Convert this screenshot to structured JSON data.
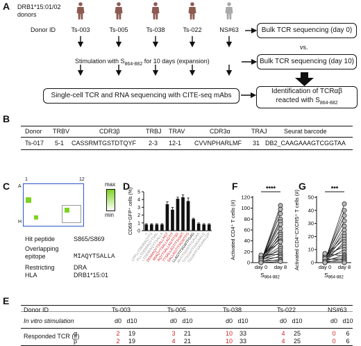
{
  "panel_labels": {
    "a": "A",
    "b": "B",
    "c": "C",
    "d": "D",
    "e": "E",
    "f": "F",
    "g": "G"
  },
  "panel_a": {
    "hla_label": "DRB1*15:01/02",
    "donors_label": "donors",
    "donor_id_label": "Donor ID",
    "donors": [
      "Ts-003",
      "Ts-005",
      "Ts-038",
      "Ts-022",
      "NS#63"
    ],
    "bulk_day0": "Bulk TCR sequencing (day 0)",
    "vs": "vs.",
    "stimulation_pre": "Stimulation with S",
    "stimulation_sub": "864-882",
    "stimulation_post": " for 10 days (expansion)",
    "bulk_day10": "Bulk TCR sequencing (day 10)",
    "single_cell": "Single-cell TCR and RNA sequencing with CITE-seq mAbs",
    "identification_line1": "Identification of TCRαβ",
    "identification_line2_pre": "reacted with S",
    "identification_line2_sub": "864-882",
    "colors": {
      "donor_icon": "#8d5a52",
      "control_icon": "#a9a9a9"
    }
  },
  "panel_b": {
    "headers": [
      "Donor",
      "TRBV",
      "CDR3β",
      "TRBJ",
      "TRAV",
      "CDR3α",
      "TRAJ",
      "Seurat barcode"
    ],
    "row": [
      "Ts-017",
      "5-1",
      "CASSRMTGSTDTQYF",
      "2-3",
      "12-1",
      "CVVNPHARLMF",
      "31",
      "DB2_CAAGAAAGTCGGTAA"
    ]
  },
  "panel_c": {
    "col_start": "1",
    "col_end": "12",
    "row_start": "A",
    "row_end": "H",
    "legend_max": "max",
    "legend_min": "min",
    "hit_peptide_label": "Hit peptide",
    "hit_peptide_value": "S865/S869",
    "overlapping_label_1": "Overlapping",
    "overlapping_label_2": "epitope",
    "overlapping_value": "MIAQYTSALLA",
    "restricting_label_1": "Restricting",
    "restricting_label_2": "HLA",
    "restricting_value_1": "DRA",
    "restricting_value_2": "DRB1*15:01",
    "colors": {
      "plate_border": "#2a55c9",
      "hit_well": "#7ed321"
    }
  },
  "panel_d": {
    "ylabel": "CD69⁺GFP⁺ cells (%)",
    "chart_data": {
      "type": "bar",
      "ylabel": "CD69⁺GFP⁺ cells (%)",
      "ylim": [
        0,
        5
      ],
      "yticks": [
        0,
        1,
        2,
        3,
        4,
        5
      ],
      "categories": [
        "–",
        "LPPLLTDEMIAQYTS",
        "PLLTDEMIAQYTSAL",
        "LTDEMIAQYTSALLA",
        "DEMIAQYTSALLAGT",
        "MIAQYTSALLAGTIT",
        "AQYTSALLAGTITSG",
        "YTSALLAGTITSGWT",
        "SALLAGTITSGWTFG",
        "LLAGTITSGWTFGAG",
        "AGTITSGWTFGAGAA",
        "TITSGWTFGAGAALQ",
        "TSGWTFGAGAALQIP"
      ],
      "values": [
        0.8,
        0.8,
        0.8,
        0.8,
        3.4,
        2.7,
        4.1,
        4.3,
        3.8,
        1.5,
        0.9,
        0.8,
        0.8
      ],
      "errors": [
        0.1,
        0.1,
        0.1,
        0.1,
        0.3,
        0.3,
        0.2,
        0.3,
        0.4,
        0.1,
        0.1,
        0.1,
        0.1
      ],
      "label_colors": [
        "#111111",
        "#9a9a9a",
        "#9a9a9a",
        "#9a9a9a",
        "#d2232a",
        "#d2232a",
        "#d2232a",
        "#d2232a",
        "#d2232a",
        "#111111",
        "#9a9a9a",
        "#9a9a9a",
        "#9a9a9a"
      ]
    }
  },
  "panel_f": {
    "ylabel": "Activated CD4⁺ T cells (#)",
    "significance": "****",
    "xlabel_pre": "S",
    "xlabel_sub": "864-882",
    "chart_data": {
      "type": "scatter",
      "categories": [
        "day 0",
        "day 8"
      ],
      "ylabel": "Activated CD4⁺ T cells (#)",
      "ylim": [
        0,
        120
      ],
      "yticks": [
        0,
        20,
        40,
        60,
        80,
        100,
        120
      ],
      "pairs": [
        [
          2,
          105
        ],
        [
          1,
          98
        ],
        [
          3,
          90
        ],
        [
          2,
          80
        ],
        [
          5,
          75
        ],
        [
          4,
          70
        ],
        [
          6,
          62
        ],
        [
          3,
          55
        ],
        [
          8,
          52
        ],
        [
          2,
          48
        ],
        [
          10,
          44
        ],
        [
          4,
          40
        ],
        [
          12,
          38
        ],
        [
          6,
          30
        ],
        [
          3,
          26
        ],
        [
          9,
          22
        ],
        [
          5,
          18
        ],
        [
          14,
          15
        ],
        [
          2,
          12
        ],
        [
          7,
          10
        ],
        [
          1,
          6
        ],
        [
          4,
          4
        ],
        [
          0,
          2
        ]
      ]
    }
  },
  "panel_g": {
    "ylabel": "Activated CD4⁺CXCR5⁺ T cells (#)",
    "significance": "***",
    "xlabel_pre": "S",
    "xlabel_sub": "864-882",
    "chart_data": {
      "type": "scatter",
      "categories": [
        "day 0",
        "day 8"
      ],
      "ylabel": "Activated CD4⁺CXCR5⁺ T cells (#)",
      "ylim": [
        0,
        50
      ],
      "yticks": [
        0,
        10,
        20,
        30,
        40,
        50
      ],
      "pairs": [
        [
          1,
          45
        ],
        [
          2,
          40
        ],
        [
          1,
          36
        ],
        [
          3,
          32
        ],
        [
          2,
          28
        ],
        [
          1,
          25
        ],
        [
          4,
          22
        ],
        [
          2,
          20
        ],
        [
          5,
          18
        ],
        [
          1,
          16
        ],
        [
          3,
          14
        ],
        [
          6,
          12
        ],
        [
          2,
          10
        ],
        [
          4,
          8
        ],
        [
          1,
          6
        ],
        [
          7,
          5
        ],
        [
          2,
          4
        ],
        [
          0,
          3
        ],
        [
          3,
          2
        ],
        [
          1,
          1
        ],
        [
          0,
          0
        ]
      ]
    }
  },
  "panel_e": {
    "donor_id_label": "Donor ID",
    "stim_label": "In vitro stimulation",
    "responded_label": "Responded TCR (#)",
    "alpha": "α",
    "beta": "β",
    "donors": [
      "Ts-003",
      "Ts-005",
      "Ts-038",
      "Ts-022",
      "NS#63"
    ],
    "d0": "d0",
    "d10": "d10",
    "alpha_values": [
      [
        "2",
        "19"
      ],
      [
        "3",
        "21"
      ],
      [
        "10",
        "33"
      ],
      [
        "4",
        "25"
      ],
      [
        "0",
        "6"
      ]
    ],
    "beta_values": [
      [
        "2",
        "19"
      ],
      [
        "4",
        "21"
      ],
      [
        "10",
        "33"
      ],
      [
        "4",
        "25"
      ],
      [
        "0",
        "6"
      ]
    ],
    "colors": {
      "d0_value": "#d2232a"
    }
  }
}
